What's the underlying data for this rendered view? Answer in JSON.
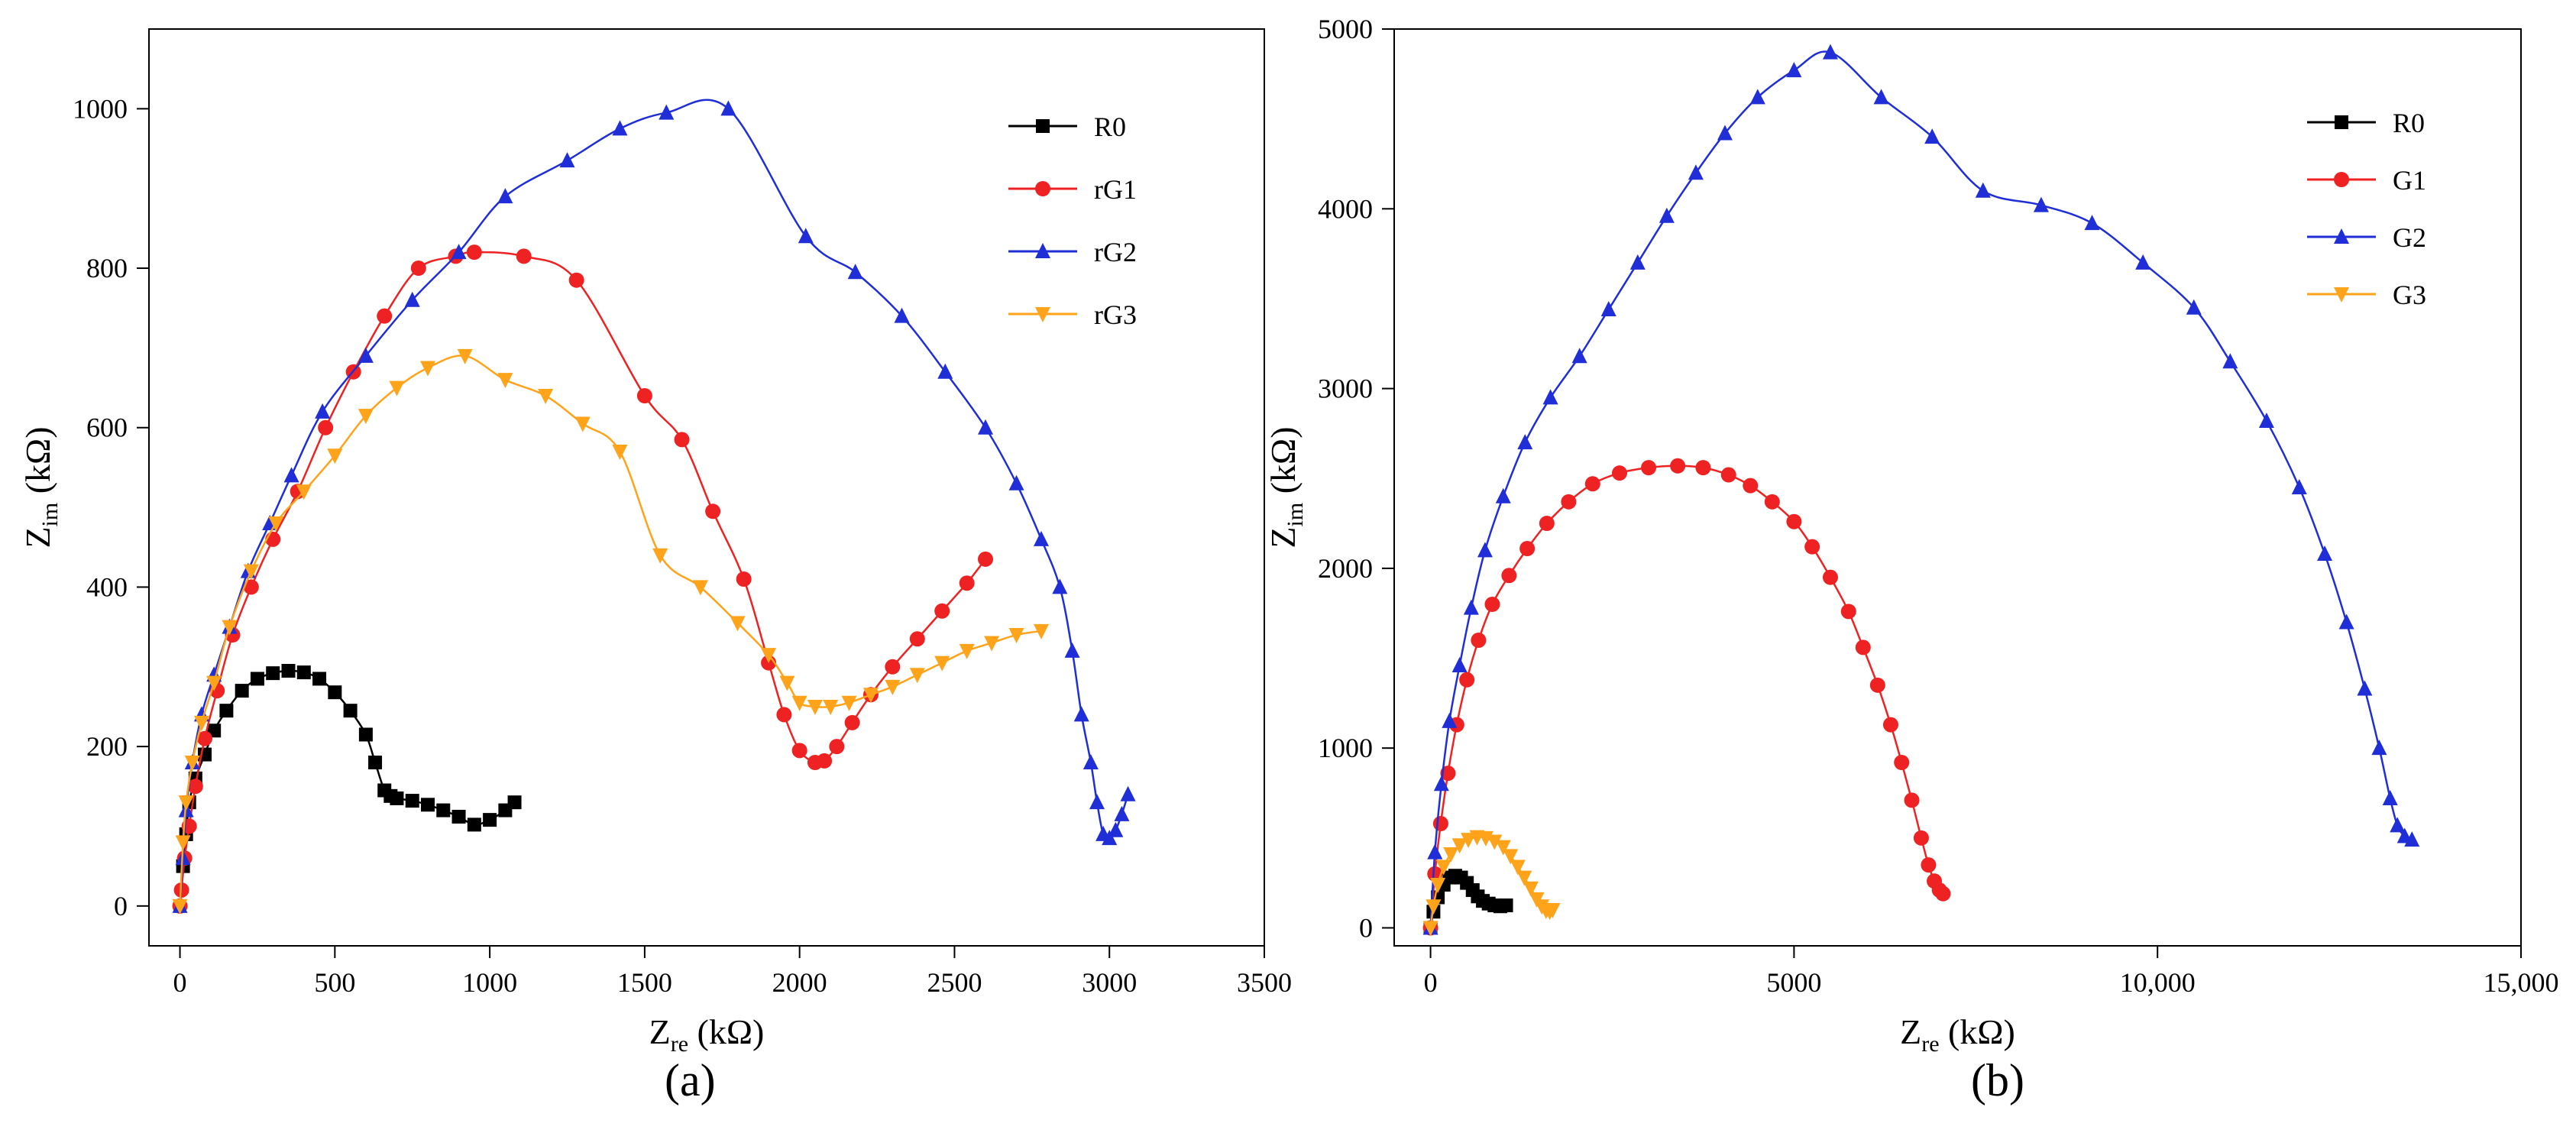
{
  "chart_data": [
    {
      "panel_label": "(a)",
      "type": "scatter",
      "xlabel": {
        "main": "Z",
        "sub": "re",
        "unit": " (kΩ)"
      },
      "ylabel": {
        "main": "Z",
        "sub": "im",
        "unit": " (kΩ)"
      },
      "xlim": [
        -100,
        3500
      ],
      "ylim": [
        -50,
        1100
      ],
      "xticks": [
        0,
        500,
        1000,
        1500,
        2000,
        2500,
        3000,
        3500
      ],
      "xtick_labels": [
        "0",
        "500",
        "1000",
        "1500",
        "2000",
        "2500",
        "3000",
        "3500"
      ],
      "yticks": [
        0,
        200,
        400,
        600,
        800,
        1000
      ],
      "ytick_labels": [
        "0",
        "200",
        "400",
        "600",
        "800",
        "1000"
      ],
      "legend_position": "top-right",
      "series": [
        {
          "name": "R0",
          "color": "#000000",
          "marker": "square",
          "x": [
            10,
            20,
            30,
            50,
            80,
            110,
            150,
            200,
            250,
            300,
            350,
            400,
            450,
            500,
            550,
            600,
            630,
            660,
            680,
            700,
            750,
            800,
            850,
            900,
            950,
            1000,
            1050,
            1080
          ],
          "y": [
            50,
            90,
            130,
            160,
            190,
            220,
            245,
            270,
            285,
            292,
            295,
            293,
            285,
            268,
            245,
            215,
            180,
            145,
            138,
            135,
            132,
            127,
            120,
            112,
            102,
            108,
            120,
            130
          ]
        },
        {
          "name": "rG1",
          "color": "#ee2222",
          "marker": "circle",
          "x": [
            0,
            5,
            15,
            30,
            50,
            80,
            120,
            170,
            230,
            300,
            380,
            470,
            560,
            660,
            770,
            890,
            950,
            1110,
            1280,
            1500,
            1620,
            1720,
            1820,
            1900,
            1950,
            2000,
            2050,
            2080,
            2120,
            2170,
            2230,
            2300,
            2380,
            2460,
            2540,
            2600
          ],
          "y": [
            0,
            20,
            60,
            100,
            150,
            210,
            270,
            340,
            400,
            460,
            520,
            600,
            670,
            740,
            800,
            815,
            820,
            815,
            785,
            640,
            585,
            495,
            410,
            305,
            240,
            195,
            180,
            182,
            200,
            230,
            265,
            300,
            335,
            370,
            405,
            435
          ]
        },
        {
          "name": "rG2",
          "color": "#1f2ed6",
          "marker": "triangle-up",
          "x": [
            0,
            10,
            20,
            40,
            70,
            110,
            160,
            220,
            290,
            360,
            460,
            600,
            750,
            900,
            1050,
            1250,
            1420,
            1570,
            1770,
            2020,
            2180,
            2330,
            2470,
            2600,
            2700,
            2780,
            2840,
            2880,
            2910,
            2940,
            2960,
            2980,
            3000,
            3020,
            3040,
            3060
          ],
          "y": [
            0,
            60,
            120,
            180,
            240,
            290,
            350,
            420,
            480,
            540,
            620,
            690,
            760,
            820,
            890,
            935,
            975,
            995,
            1000,
            840,
            795,
            740,
            670,
            600,
            530,
            460,
            400,
            320,
            240,
            180,
            130,
            90,
            85,
            95,
            115,
            140
          ]
        },
        {
          "name": "rG3",
          "color": "#ffa31a",
          "marker": "triangle-down",
          "x": [
            0,
            10,
            20,
            40,
            70,
            110,
            160,
            230,
            310,
            400,
            500,
            600,
            700,
            800,
            920,
            1050,
            1180,
            1300,
            1420,
            1550,
            1680,
            1800,
            1900,
            1960,
            2000,
            2050,
            2100,
            2160,
            2230,
            2300,
            2380,
            2460,
            2540,
            2620,
            2700,
            2780
          ],
          "y": [
            0,
            80,
            130,
            180,
            230,
            280,
            350,
            420,
            480,
            520,
            565,
            615,
            650,
            675,
            690,
            660,
            640,
            605,
            570,
            440,
            400,
            355,
            315,
            280,
            255,
            250,
            250,
            255,
            265,
            275,
            290,
            305,
            320,
            330,
            340,
            345
          ]
        }
      ]
    },
    {
      "panel_label": "(b)",
      "type": "scatter",
      "xlabel": {
        "main": "Z",
        "sub": "re",
        "unit": " (kΩ)"
      },
      "ylabel": {
        "main": "Z",
        "sub": "im",
        "unit": " (kΩ)"
      },
      "xlim": [
        -500,
        15000
      ],
      "ylim": [
        -100,
        5000
      ],
      "xticks": [
        0,
        5000,
        10000,
        15000
      ],
      "xtick_labels": [
        "0",
        "5000",
        "10,000",
        "15,000"
      ],
      "yticks": [
        0,
        1000,
        2000,
        3000,
        4000,
        5000
      ],
      "ytick_labels": [
        "0",
        "1000",
        "2000",
        "3000",
        "4000",
        "5000"
      ],
      "legend_position": "top-right",
      "series": [
        {
          "name": "R0",
          "color": "#000000",
          "marker": "square",
          "x": [
            0,
            40,
            100,
            180,
            260,
            340,
            420,
            500,
            580,
            650,
            720,
            800,
            880,
            960,
            1040
          ],
          "y": [
            0,
            90,
            170,
            240,
            280,
            290,
            280,
            250,
            210,
            175,
            150,
            135,
            125,
            120,
            125
          ]
        },
        {
          "name": "G1",
          "color": "#ee2222",
          "marker": "circle",
          "x": [
            0,
            60,
            140,
            240,
            360,
            500,
            660,
            850,
            1080,
            1330,
            1600,
            1900,
            2230,
            2600,
            3000,
            3400,
            3750,
            4100,
            4400,
            4700,
            5000,
            5250,
            5500,
            5750,
            5950,
            6150,
            6330,
            6480,
            6620,
            6750,
            6850,
            6930,
            7000,
            7050
          ],
          "y": [
            0,
            300,
            580,
            860,
            1130,
            1380,
            1600,
            1800,
            1960,
            2110,
            2250,
            2370,
            2470,
            2530,
            2560,
            2570,
            2560,
            2520,
            2460,
            2370,
            2260,
            2120,
            1950,
            1760,
            1560,
            1350,
            1130,
            920,
            710,
            500,
            350,
            260,
            210,
            190
          ]
        },
        {
          "name": "G2",
          "color": "#1f2ed6",
          "marker": "triangle-up",
          "x": [
            0,
            60,
            150,
            260,
            400,
            560,
            750,
            1000,
            1300,
            1650,
            2050,
            2450,
            2850,
            3250,
            3650,
            4050,
            4500,
            5000,
            5500,
            6200,
            6900,
            7600,
            8400,
            9100,
            9800,
            10500,
            11000,
            11500,
            11950,
            12300,
            12600,
            12850,
            13050,
            13200,
            13300,
            13400,
            13500
          ],
          "y": [
            0,
            420,
            800,
            1150,
            1460,
            1780,
            2100,
            2400,
            2700,
            2950,
            3180,
            3440,
            3700,
            3960,
            4200,
            4420,
            4620,
            4770,
            4870,
            4620,
            4400,
            4100,
            4020,
            3920,
            3700,
            3450,
            3150,
            2820,
            2450,
            2080,
            1700,
            1330,
            1000,
            720,
            570,
            510,
            490
          ]
        },
        {
          "name": "G3",
          "color": "#ffa31a",
          "marker": "triangle-down",
          "x": [
            0,
            40,
            100,
            180,
            280,
            400,
            520,
            640,
            760,
            880,
            1000,
            1100,
            1200,
            1290,
            1380,
            1460,
            1530,
            1590,
            1640,
            1680
          ],
          "y": [
            0,
            120,
            240,
            340,
            410,
            460,
            490,
            505,
            500,
            480,
            450,
            400,
            340,
            280,
            220,
            160,
            120,
            95,
            90,
            100
          ]
        }
      ]
    }
  ]
}
